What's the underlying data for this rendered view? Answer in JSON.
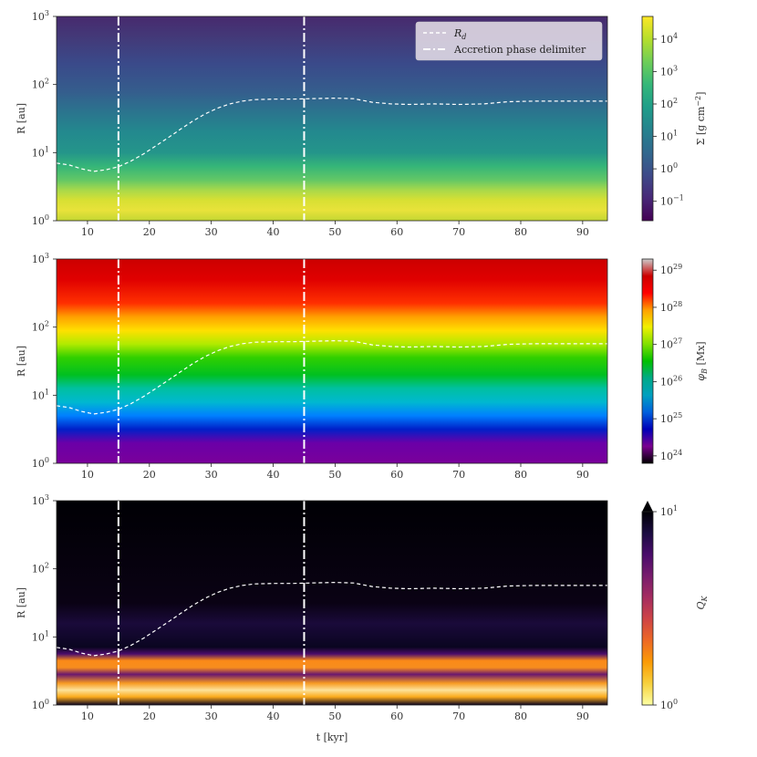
{
  "chart_data": [
    {
      "type": "heatmap",
      "quantity": "surface-density",
      "ylabel": "R [au]",
      "xlabel": "",
      "x_ticks": [
        "10",
        "20",
        "30",
        "40",
        "50",
        "60",
        "70",
        "80",
        "90"
      ],
      "y_ticks": [
        {
          "base": "10",
          "exp": "0"
        },
        {
          "base": "10",
          "exp": "1"
        },
        {
          "base": "10",
          "exp": "2"
        },
        {
          "base": "10",
          "exp": "3"
        }
      ],
      "xlim": [
        5,
        94
      ],
      "ylim": [
        1,
        1000
      ],
      "yscale": "log",
      "colorbar": {
        "label": "Σ [g cm⁻²]",
        "colormap": "viridis",
        "scale": "log",
        "ticks": [
          {
            "base": "10",
            "exp": "−1"
          },
          {
            "base": "10",
            "exp": "0"
          },
          {
            "base": "10",
            "exp": "1"
          },
          {
            "base": "10",
            "exp": "2"
          },
          {
            "base": "10",
            "exp": "3"
          },
          {
            "base": "10",
            "exp": "4"
          }
        ],
        "range_log": [
          -1.6,
          4.7
        ]
      },
      "legend": {
        "placement": "top-right",
        "entries": [
          {
            "label": "R_d",
            "style": "dashed",
            "color": "#ffffff"
          },
          {
            "label": "Accretion phase delimiter",
            "style": "dash-dot",
            "color": "#ffffff"
          }
        ]
      }
    },
    {
      "type": "heatmap",
      "quantity": "magnetic-flux",
      "ylabel": "R [au]",
      "xlabel": "",
      "x_ticks": [
        "10",
        "20",
        "30",
        "40",
        "50",
        "60",
        "70",
        "80",
        "90"
      ],
      "y_ticks": [
        {
          "base": "10",
          "exp": "0"
        },
        {
          "base": "10",
          "exp": "1"
        },
        {
          "base": "10",
          "exp": "2"
        },
        {
          "base": "10",
          "exp": "3"
        }
      ],
      "xlim": [
        5,
        94
      ],
      "ylim": [
        1,
        1000
      ],
      "yscale": "log",
      "colorbar": {
        "label": "φ_B [Mx]",
        "colormap": "nipy_spectral",
        "scale": "log",
        "ticks": [
          {
            "base": "10",
            "exp": "24"
          },
          {
            "base": "10",
            "exp": "25"
          },
          {
            "base": "10",
            "exp": "26"
          },
          {
            "base": "10",
            "exp": "27"
          },
          {
            "base": "10",
            "exp": "28"
          },
          {
            "base": "10",
            "exp": "29"
          }
        ],
        "range_log": [
          23.8,
          29.3
        ]
      }
    },
    {
      "type": "heatmap",
      "quantity": "toomre-q",
      "ylabel": "R [au]",
      "xlabel": "t [kyr]",
      "x_ticks": [
        "10",
        "20",
        "30",
        "40",
        "50",
        "60",
        "70",
        "80",
        "90"
      ],
      "y_ticks": [
        {
          "base": "10",
          "exp": "0"
        },
        {
          "base": "10",
          "exp": "1"
        },
        {
          "base": "10",
          "exp": "2"
        },
        {
          "base": "10",
          "exp": "3"
        }
      ],
      "xlim": [
        5,
        94
      ],
      "ylim": [
        1,
        1000
      ],
      "yscale": "log",
      "colorbar": {
        "label": "Q_K",
        "colormap": "inferno_r",
        "scale": "log",
        "extend": "max",
        "ticks": [
          {
            "base": "10",
            "exp": "0"
          },
          {
            "base": "10",
            "exp": "1"
          }
        ],
        "range_log": [
          0,
          1
        ]
      }
    }
  ],
  "overlays": {
    "disk_radius_Rd": {
      "label": "R_d",
      "t": [
        5,
        7,
        9,
        11,
        13,
        15,
        17,
        19,
        21,
        23,
        25,
        27,
        29,
        31,
        33,
        35,
        37,
        40,
        43,
        46,
        50,
        53,
        56,
        59,
        62,
        66,
        70,
        74,
        78,
        82,
        86,
        90,
        94
      ],
      "R": [
        7.0,
        6.6,
        5.8,
        5.3,
        5.6,
        6.2,
        7.5,
        9.5,
        12.5,
        16.5,
        22,
        29,
        37,
        45,
        52,
        57,
        60,
        61,
        61,
        62,
        63,
        62,
        55,
        52,
        51,
        52,
        51,
        52,
        56,
        57,
        57,
        57,
        57
      ]
    },
    "accretion_phase_delimiters_t": [
      15,
      45
    ]
  }
}
